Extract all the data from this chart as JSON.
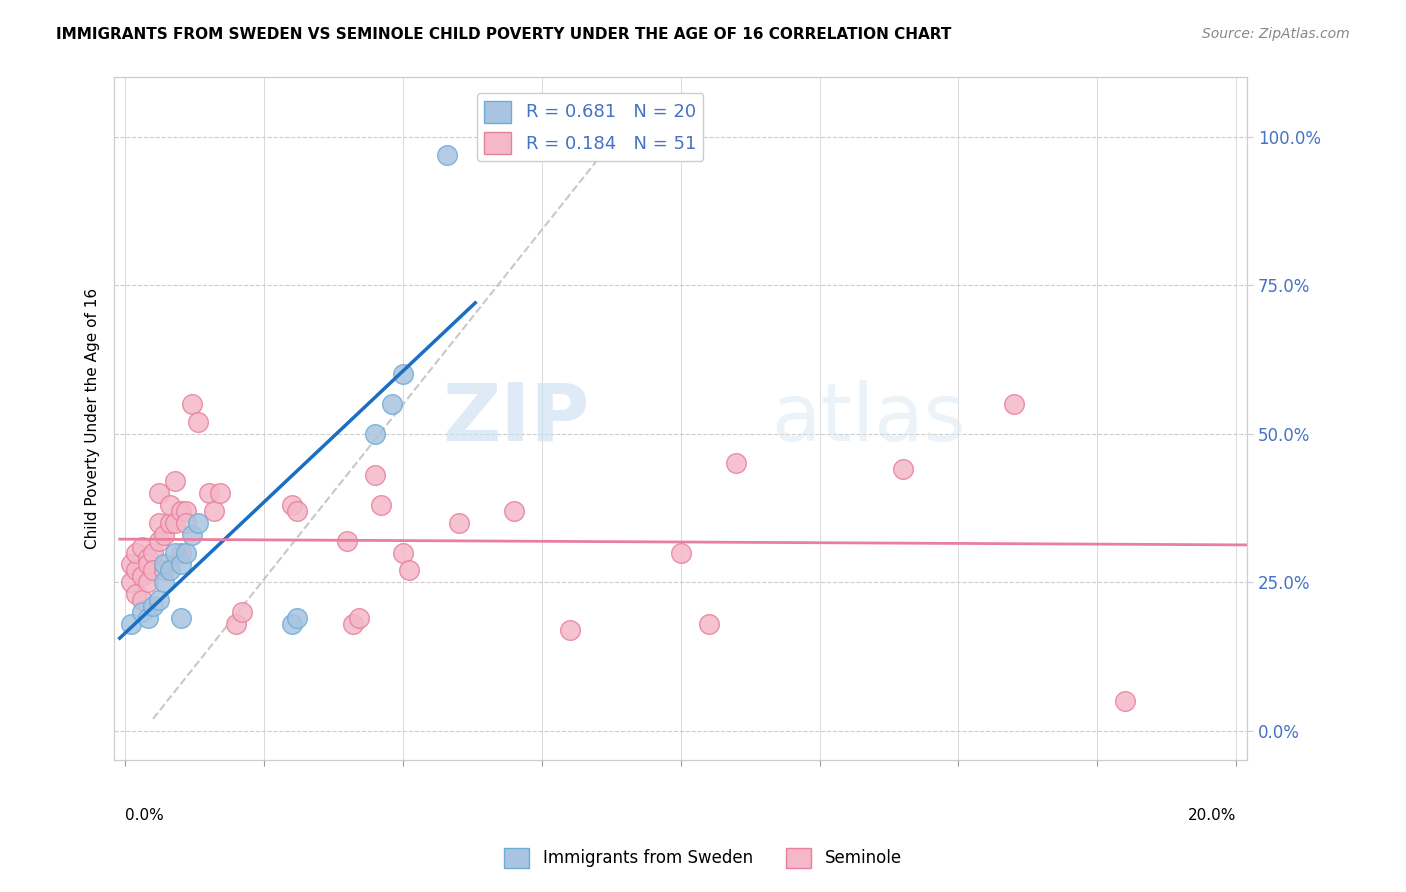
{
  "title": "IMMIGRANTS FROM SWEDEN VS SEMINOLE CHILD POVERTY UNDER THE AGE OF 16 CORRELATION CHART",
  "source": "Source: ZipAtlas.com",
  "ylabel": "Child Poverty Under the Age of 16",
  "right_yticks": [
    0.0,
    0.25,
    0.5,
    0.75,
    1.0
  ],
  "right_yticklabels": [
    "0.0%",
    "25.0%",
    "50.0%",
    "75.0%",
    "100.0%"
  ],
  "legend_r1": "R = 0.681",
  "legend_n1": "N = 20",
  "legend_r2": "R = 0.184",
  "legend_n2": "51",
  "blue_color": "#a8c4e0",
  "blue_edge": "#6aaed6",
  "pink_color": "#f4b8c8",
  "pink_edge": "#e87fa0",
  "trend_blue": "#1a6fc4",
  "trend_pink": "#e87fa0",
  "watermark_zip": "ZIP",
  "watermark_atlas": "atlas",
  "sweden_points": [
    [
      0.001,
      0.18
    ],
    [
      0.003,
      0.2
    ],
    [
      0.004,
      0.19
    ],
    [
      0.005,
      0.21
    ],
    [
      0.006,
      0.22
    ],
    [
      0.007,
      0.28
    ],
    [
      0.007,
      0.25
    ],
    [
      0.008,
      0.27
    ],
    [
      0.009,
      0.3
    ],
    [
      0.01,
      0.28
    ],
    [
      0.01,
      0.19
    ],
    [
      0.011,
      0.3
    ],
    [
      0.012,
      0.33
    ],
    [
      0.013,
      0.35
    ],
    [
      0.03,
      0.18
    ],
    [
      0.031,
      0.19
    ],
    [
      0.045,
      0.5
    ],
    [
      0.048,
      0.55
    ],
    [
      0.05,
      0.6
    ],
    [
      0.058,
      0.97
    ]
  ],
  "seminole_points": [
    [
      0.001,
      0.25
    ],
    [
      0.001,
      0.28
    ],
    [
      0.002,
      0.27
    ],
    [
      0.002,
      0.3
    ],
    [
      0.002,
      0.23
    ],
    [
      0.003,
      0.31
    ],
    [
      0.003,
      0.26
    ],
    [
      0.003,
      0.22
    ],
    [
      0.004,
      0.29
    ],
    [
      0.004,
      0.25
    ],
    [
      0.004,
      0.28
    ],
    [
      0.005,
      0.3
    ],
    [
      0.005,
      0.27
    ],
    [
      0.006,
      0.32
    ],
    [
      0.006,
      0.35
    ],
    [
      0.006,
      0.4
    ],
    [
      0.007,
      0.33
    ],
    [
      0.007,
      0.27
    ],
    [
      0.008,
      0.35
    ],
    [
      0.008,
      0.38
    ],
    [
      0.009,
      0.42
    ],
    [
      0.009,
      0.35
    ],
    [
      0.01,
      0.37
    ],
    [
      0.01,
      0.3
    ],
    [
      0.011,
      0.37
    ],
    [
      0.011,
      0.35
    ],
    [
      0.012,
      0.55
    ],
    [
      0.013,
      0.52
    ],
    [
      0.015,
      0.4
    ],
    [
      0.016,
      0.37
    ],
    [
      0.017,
      0.4
    ],
    [
      0.02,
      0.18
    ],
    [
      0.021,
      0.2
    ],
    [
      0.03,
      0.38
    ],
    [
      0.031,
      0.37
    ],
    [
      0.04,
      0.32
    ],
    [
      0.041,
      0.18
    ],
    [
      0.042,
      0.19
    ],
    [
      0.045,
      0.43
    ],
    [
      0.046,
      0.38
    ],
    [
      0.05,
      0.3
    ],
    [
      0.051,
      0.27
    ],
    [
      0.06,
      0.35
    ],
    [
      0.07,
      0.37
    ],
    [
      0.08,
      0.17
    ],
    [
      0.1,
      0.3
    ],
    [
      0.105,
      0.18
    ],
    [
      0.11,
      0.45
    ],
    [
      0.14,
      0.44
    ],
    [
      0.16,
      0.55
    ],
    [
      0.18,
      0.05
    ]
  ]
}
